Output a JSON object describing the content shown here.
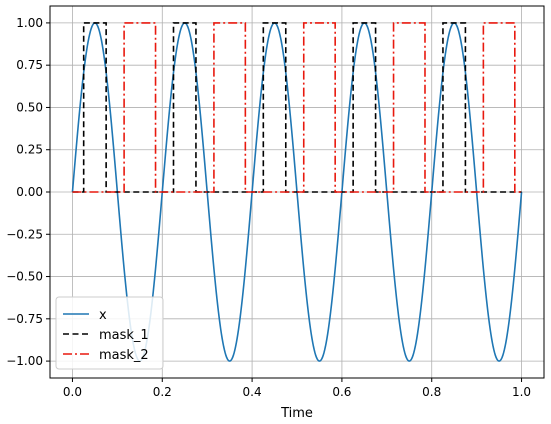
{
  "chart_data": {
    "type": "line",
    "title": "",
    "xlabel": "Time",
    "ylabel": "",
    "xlim": [
      -0.05,
      1.05
    ],
    "ylim": [
      -1.1,
      1.1
    ],
    "xticks": [
      0.0,
      0.2,
      0.4,
      0.6,
      0.8,
      1.0
    ],
    "xtick_labels": [
      "0.0",
      "0.2",
      "0.4",
      "0.6",
      "0.8",
      "1.0"
    ],
    "yticks": [
      -1.0,
      -0.75,
      -0.5,
      -0.25,
      0.0,
      0.25,
      0.5,
      0.75,
      1.0
    ],
    "ytick_labels": [
      "−1.00",
      "−0.75",
      "−0.50",
      "−0.25",
      "0.00",
      "0.25",
      "0.50",
      "0.75",
      "1.00"
    ],
    "grid": true,
    "legend_position": "lower-left",
    "series": [
      {
        "name": "x",
        "style": "solid",
        "color": "#1f77b4",
        "function": "sin(2*pi*5*t)",
        "t_range": [
          0.0,
          1.0
        ]
      },
      {
        "name": "mask_1",
        "style": "dashed",
        "color": "#000000",
        "intervals_high": [
          [
            0.025,
            0.075
          ],
          [
            0.225,
            0.275
          ],
          [
            0.425,
            0.475
          ],
          [
            0.625,
            0.675
          ],
          [
            0.825,
            0.875
          ]
        ],
        "low": 0,
        "high": 1
      },
      {
        "name": "mask_2",
        "style": "dashdot",
        "color": "#e8190e",
        "intervals_high": [
          [
            0.115,
            0.185
          ],
          [
            0.315,
            0.385
          ],
          [
            0.515,
            0.585
          ],
          [
            0.715,
            0.785
          ],
          [
            0.915,
            0.985
          ]
        ],
        "low": 0,
        "high": 1
      }
    ]
  }
}
